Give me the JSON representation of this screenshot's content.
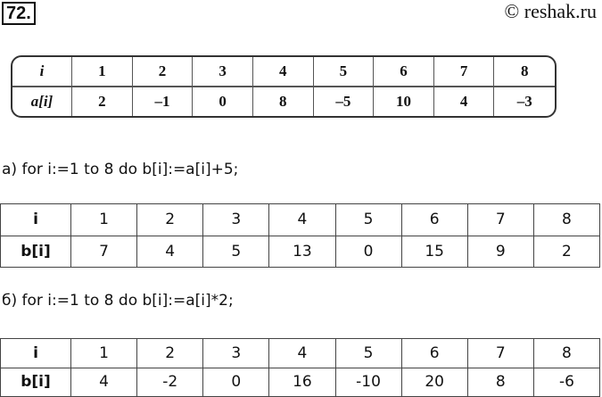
{
  "number": "72.",
  "copyright": "© reshak.ru",
  "table_a": {
    "headers": [
      "i",
      "a[i]"
    ],
    "i": [
      "1",
      "2",
      "3",
      "4",
      "5",
      "6",
      "7",
      "8"
    ],
    "values": [
      "2",
      "–1",
      "0",
      "8",
      "–5",
      "10",
      "4",
      "–3"
    ]
  },
  "part_a": {
    "text": "а) for i:=1 to 8 do b[i]:=a[i]+5;",
    "headers": [
      "i",
      "b[i]"
    ],
    "i": [
      "1",
      "2",
      "3",
      "4",
      "5",
      "6",
      "7",
      "8"
    ],
    "values": [
      "7",
      "4",
      "5",
      "13",
      "0",
      "15",
      "9",
      "2"
    ]
  },
  "part_b": {
    "text": "б) for i:=1 to 8 do b[i]:=a[i]*2;",
    "headers": [
      "i",
      "b[i]"
    ],
    "i": [
      "1",
      "2",
      "3",
      "4",
      "5",
      "6",
      "7",
      "8"
    ],
    "values": [
      "4",
      "-2",
      "0",
      "16",
      "-10",
      "20",
      "8",
      "-6"
    ]
  }
}
